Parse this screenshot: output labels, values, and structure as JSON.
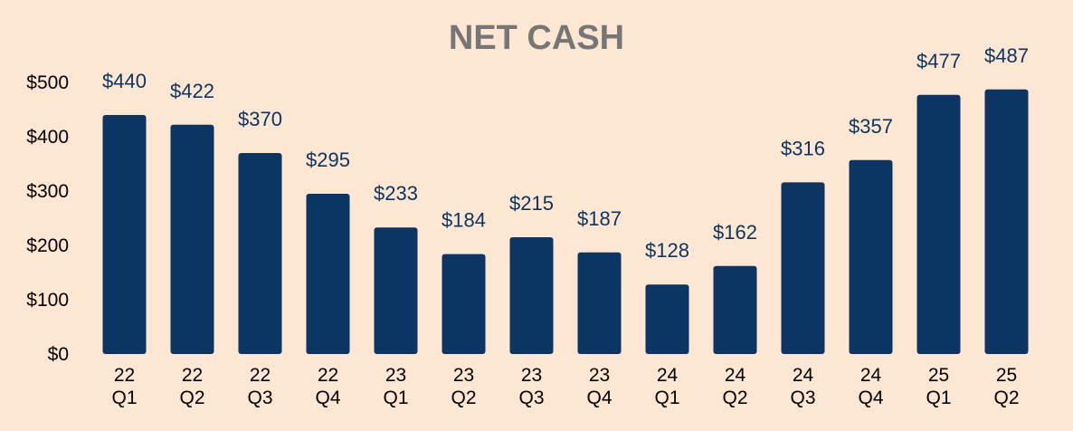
{
  "chart_data": {
    "type": "bar",
    "title": "NET CASH",
    "xlabel": "",
    "ylabel": "",
    "categories": [
      [
        "22",
        "Q1"
      ],
      [
        "22",
        "Q2"
      ],
      [
        "22",
        "Q3"
      ],
      [
        "22",
        "Q4"
      ],
      [
        "23",
        "Q1"
      ],
      [
        "23",
        "Q2"
      ],
      [
        "23",
        "Q3"
      ],
      [
        "23",
        "Q4"
      ],
      [
        "24",
        "Q1"
      ],
      [
        "24",
        "Q2"
      ],
      [
        "24",
        "Q3"
      ],
      [
        "24",
        "Q4"
      ],
      [
        "25",
        "Q1"
      ],
      [
        "25",
        "Q2"
      ]
    ],
    "values": [
      440,
      422,
      370,
      295,
      233,
      184,
      215,
      187,
      128,
      162,
      316,
      357,
      477,
      487
    ],
    "data_labels": [
      "$440",
      "$422",
      "$370",
      "$295",
      "$233",
      "$184",
      "$215",
      "$187",
      "$128",
      "$162",
      "$316",
      "$357",
      "$477",
      "$487"
    ],
    "yticks": [
      0,
      100,
      200,
      300,
      400,
      500
    ],
    "ytick_labels": [
      "$0",
      "$100",
      "$200",
      "$300",
      "$400",
      "$500"
    ],
    "ylim": [
      0,
      500
    ],
    "grid": false,
    "legend": "none",
    "colors": {
      "background": "#fde7d2",
      "bar": "#0b3562",
      "data_label": "#0b3562",
      "title": "#767676",
      "tick_label": "#000000"
    }
  }
}
